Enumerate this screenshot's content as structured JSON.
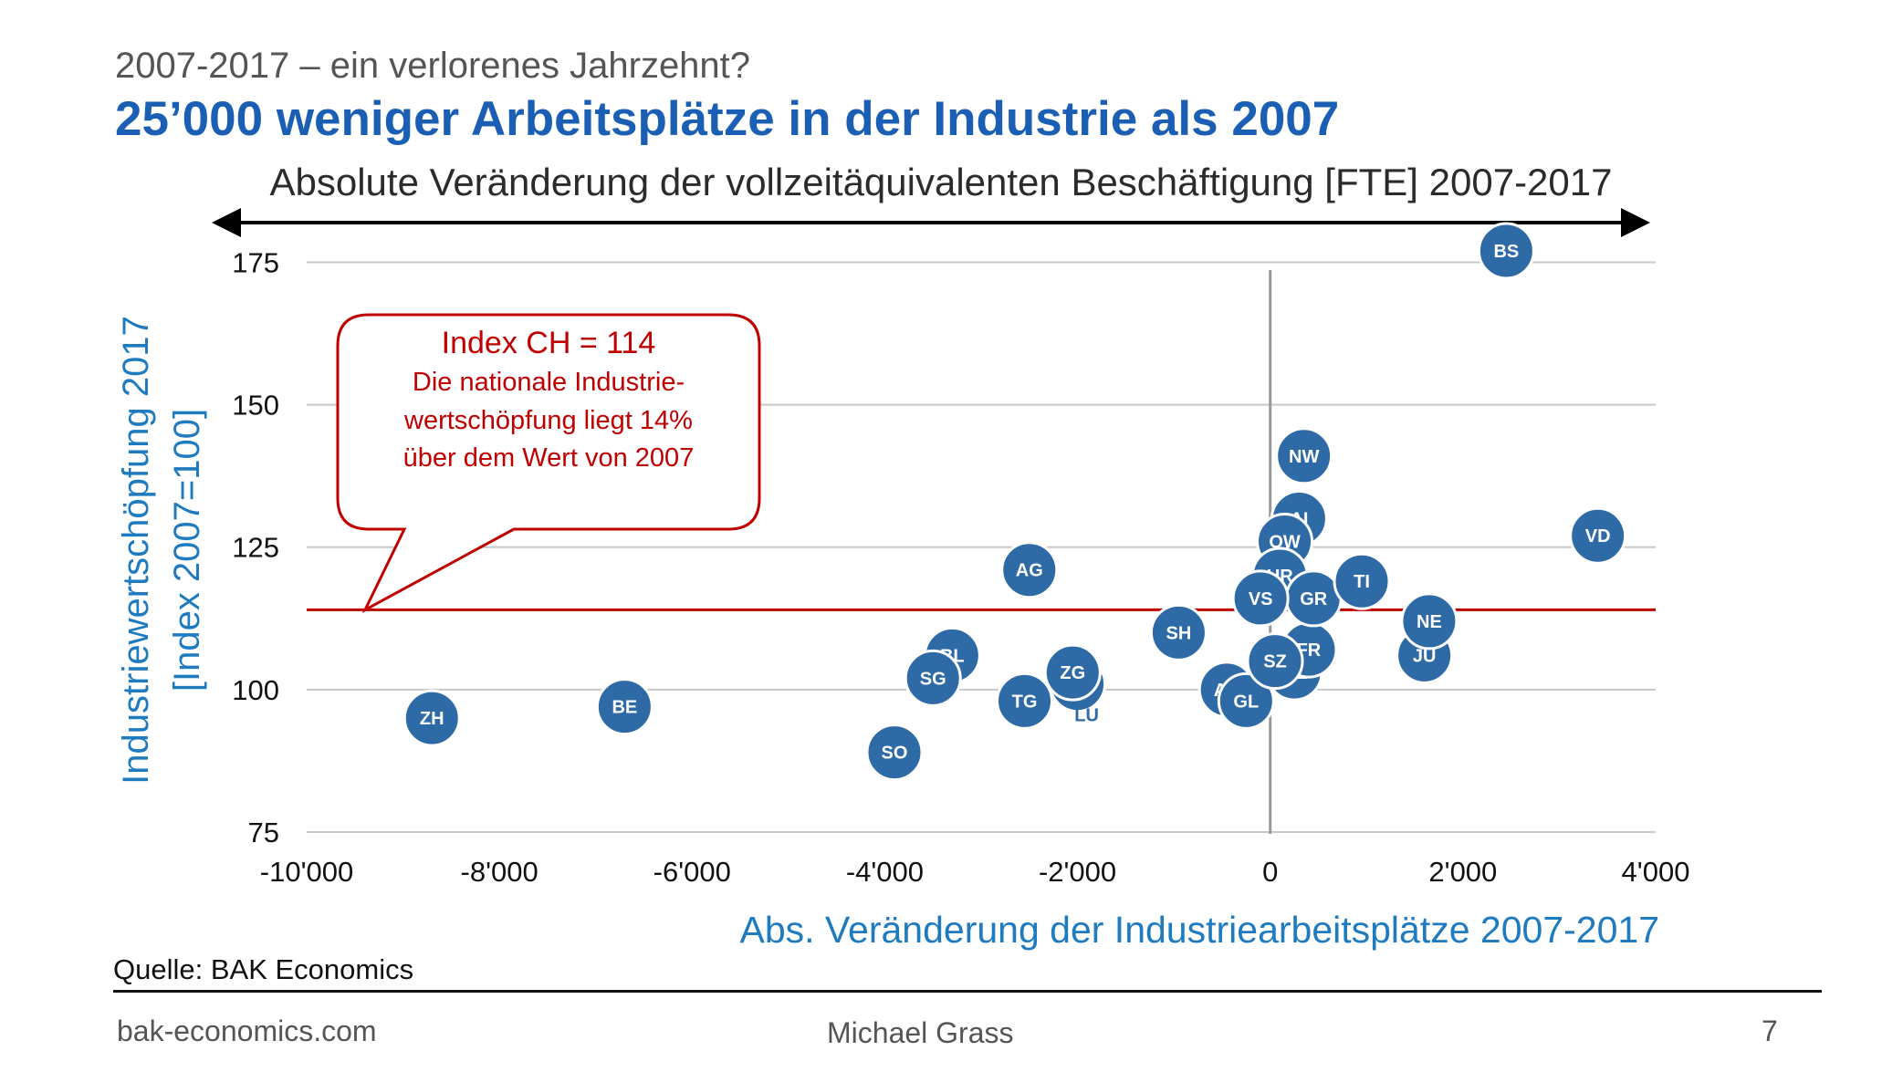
{
  "slide": {
    "supertitle": "2007-2017 – ein verlorenes Jahrzehnt?",
    "headline": "25’000 weniger Arbeitsplätze in der Industrie als 2007",
    "subtitle": "Absolute Veränderung der vollzeitäquivalenten Beschäftigung [FTE] 2007-2017",
    "source": "Quelle: BAK Economics",
    "footer_left": "bak-economics.com",
    "footer_center": "Michael Grass",
    "page_number": "7"
  },
  "colors": {
    "bubble": "#2e6aa6",
    "reference_line": "#c00000",
    "axis_title": "#1f7bc0",
    "headline": "#1a5fb4",
    "callout_text": "#c00000"
  },
  "callout": {
    "title": "Index CH = 114",
    "lines": [
      "Die nationale Industrie-",
      "wertschöpfung liegt 14%",
      "über dem Wert von 2007"
    ]
  },
  "chart_data": {
    "type": "scatter",
    "xlabel": "Abs. Veränderung der Industriearbeitsplätze 2007-2017",
    "ylabel": [
      "Industriewertschöpfung 2017",
      "[Index 2007=100]"
    ],
    "xlim": [
      -10000,
      4000
    ],
    "ylim": [
      75,
      185
    ],
    "xticks": [
      -10000,
      -8000,
      -6000,
      -4000,
      -2000,
      0,
      2000,
      4000
    ],
    "xtick_labels": [
      "-10'000",
      "-8'000",
      "-6'000",
      "-4'000",
      "-2'000",
      "0",
      "2'000",
      "4'000"
    ],
    "yticks": [
      75,
      100,
      125,
      150,
      175
    ],
    "ytick_labels": [
      "75",
      "100",
      "125",
      "150",
      "175"
    ],
    "grid": "horizontal",
    "reference_line": {
      "y": 114,
      "label": "Index CH = 114"
    },
    "points": [
      {
        "label": "ZH",
        "x": -8700,
        "y": 95
      },
      {
        "label": "BE",
        "x": -6700,
        "y": 97
      },
      {
        "label": "SO",
        "x": -3900,
        "y": 89
      },
      {
        "label": "BL",
        "x": -3300,
        "y": 106
      },
      {
        "label": "SG",
        "x": -3500,
        "y": 102
      },
      {
        "label": "AG",
        "x": -2500,
        "y": 121
      },
      {
        "label": "TG",
        "x": -2550,
        "y": 98
      },
      {
        "label": "LU",
        "x": -2000,
        "y": 101,
        "label_position": "below"
      },
      {
        "label": "ZG",
        "x": -2050,
        "y": 103
      },
      {
        "label": "SH",
        "x": -950,
        "y": 110
      },
      {
        "label": "AR",
        "x": -450,
        "y": 100
      },
      {
        "label": "GL",
        "x": -250,
        "y": 98
      },
      {
        "label": "GE",
        "x": 250,
        "y": 103
      },
      {
        "label": "FR",
        "x": 400,
        "y": 107
      },
      {
        "label": "SZ",
        "x": 50,
        "y": 105
      },
      {
        "label": "NW",
        "x": 350,
        "y": 141
      },
      {
        "label": "AI",
        "x": 300,
        "y": 130
      },
      {
        "label": "OW",
        "x": 150,
        "y": 126
      },
      {
        "label": "UR",
        "x": 100,
        "y": 120
      },
      {
        "label": "GR",
        "x": 450,
        "y": 116
      },
      {
        "label": "VS",
        "x": -100,
        "y": 116
      },
      {
        "label": "TI",
        "x": 950,
        "y": 119
      },
      {
        "label": "JU",
        "x": 1600,
        "y": 106
      },
      {
        "label": "NE",
        "x": 1650,
        "y": 112
      },
      {
        "label": "BS",
        "x": 2450,
        "y": 177
      },
      {
        "label": "VD",
        "x": 3400,
        "y": 127
      }
    ]
  }
}
